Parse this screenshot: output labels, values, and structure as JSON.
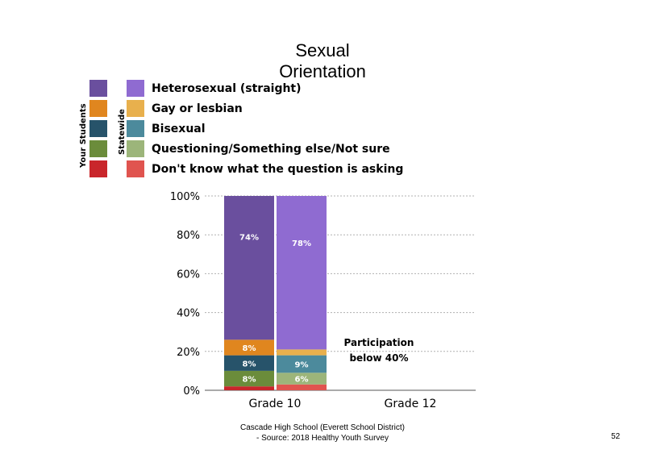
{
  "title_line1": "Sexual",
  "title_line2": "Orientation",
  "legend": {
    "group_your": "Your Students",
    "group_state": "Statewide",
    "items": [
      {
        "label": "Heterosexual (straight)",
        "your_color": "#6a4f9e",
        "state_color": "#8f6bd1"
      },
      {
        "label": "Gay or lesbian",
        "your_color": "#e0861f",
        "state_color": "#e8b04d"
      },
      {
        "label": "Bisexual",
        "your_color": "#27536a",
        "state_color": "#4c8a9c"
      },
      {
        "label": "Questioning/Something else/Not sure",
        "your_color": "#6b8c3b",
        "state_color": "#9cb57a"
      },
      {
        "label": "Don't know what the question is asking",
        "your_color": "#c9262b",
        "state_color": "#e0544f"
      }
    ]
  },
  "chart_data": {
    "type": "bar",
    "stacked": true,
    "categories": [
      "Grade 10",
      "Grade 12"
    ],
    "y_ticks": [
      "0%",
      "20%",
      "40%",
      "60%",
      "80%",
      "100%"
    ],
    "ylim": [
      0,
      100
    ],
    "grid": true,
    "series_order": [
      "Heterosexual (straight)",
      "Gay or lesbian",
      "Bisexual",
      "Questioning/Something else/Not sure",
      "Don't know what the question is asking"
    ],
    "bars": [
      {
        "category": "Grade 10",
        "group": "Your Students",
        "values": [
          74,
          8,
          8,
          8,
          2
        ],
        "labels": [
          "74%",
          "8%",
          "8%",
          "8%",
          ""
        ]
      },
      {
        "category": "Grade 10",
        "group": "Statewide",
        "values": [
          78,
          3,
          9,
          6,
          3
        ],
        "labels": [
          "78%",
          "",
          "9%",
          "6%",
          ""
        ]
      }
    ],
    "annotation_line1": "Participation",
    "annotation_line2": "below 40%"
  },
  "footer_line1": "Cascade High School (Everett School District)",
  "footer_line2": "- Source: 2018 Healthy  Youth Survey",
  "page_number": "52"
}
